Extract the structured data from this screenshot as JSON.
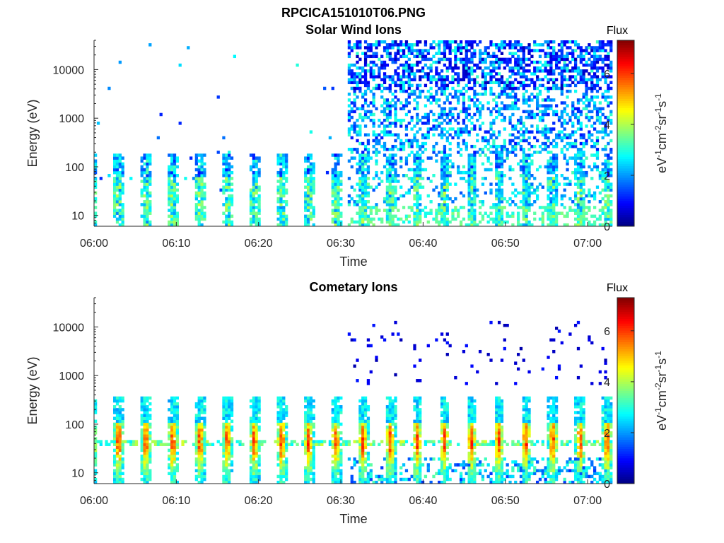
{
  "figure": {
    "title": "RPCICA151010T06.PNG",
    "colors": {
      "axis": "#262626",
      "background": "#ffffff"
    }
  },
  "chart_data": [
    {
      "type": "heatmap",
      "title": "Solar Wind Ions",
      "xlabel": "Time",
      "ylabel": "Energy (eV)",
      "x_ticks": [
        "06:00",
        "06:10",
        "06:20",
        "06:30",
        "06:40",
        "06:50",
        "07:00"
      ],
      "xlim": [
        "06:00",
        "07:03"
      ],
      "y_scale": "log",
      "y_ticks": [
        "10",
        "100",
        "1000",
        "10000"
      ],
      "ylim": [
        6,
        40000
      ],
      "colorbar": {
        "title": "Flux",
        "label": "eV-1cm-2sr-1s-1",
        "ticks": [
          "0",
          "2",
          "4",
          "6"
        ],
        "range": [
          0,
          7.3
        ],
        "colormap": "jet"
      },
      "features": {
        "scan_period_min": 3.3,
        "background_onset": "06:31",
        "typical_flux_low_energy": 3.0,
        "typical_flux_high_energy": 1.5
      }
    },
    {
      "type": "heatmap",
      "title": "Cometary Ions",
      "xlabel": "Time",
      "ylabel": "Energy (eV)",
      "x_ticks": [
        "06:00",
        "06:10",
        "06:20",
        "06:30",
        "06:40",
        "06:50",
        "07:00"
      ],
      "xlim": [
        "06:00",
        "07:03"
      ],
      "y_scale": "log",
      "y_ticks": [
        "10",
        "100",
        "1000",
        "10000"
      ],
      "ylim": [
        6,
        40000
      ],
      "colorbar": {
        "title": "Flux",
        "label": "eV-1cm-2sr-1s-1",
        "ticks": [
          "0",
          "2",
          "4",
          "6"
        ],
        "range": [
          0,
          7.3
        ],
        "colormap": "jet"
      },
      "features": {
        "scan_period_min": 3.3,
        "background_onset": "06:31",
        "peak_flux": 6.0,
        "peak_energy_eV": 45
      }
    }
  ]
}
